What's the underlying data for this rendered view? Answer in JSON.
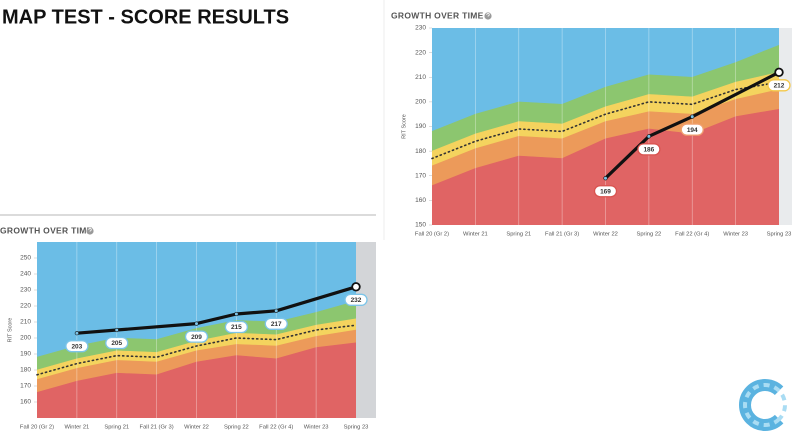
{
  "header": {
    "title": "MAP TEST - SCORE RESULTS"
  },
  "chart_data": [
    {
      "type": "area",
      "title": "GROWTH OVER TIME",
      "y_label": "RIT Score",
      "categories": [
        "Fall 20 (Gr 2)",
        "Winter 21",
        "Spring 21",
        "Fall 21 (Gr 3)",
        "Winter 22",
        "Spring 22",
        "Fall 22 (Gr 4)",
        "Winter 23",
        "Spring 23"
      ],
      "ylim": [
        150,
        230
      ],
      "yticks": [
        150,
        160,
        170,
        180,
        190,
        200,
        210,
        220,
        230
      ],
      "grid": true,
      "background_color": "#6bbde6",
      "strip_color": "#e9ebed",
      "bands": [
        {
          "color": "#e06464",
          "values": [
            166,
            173,
            178,
            177,
            185,
            189,
            187,
            194,
            197
          ]
        },
        {
          "color": "#ec9a5a",
          "values": [
            174,
            181,
            186,
            185,
            192,
            196,
            195,
            201,
            205
          ]
        },
        {
          "color": "#f4d35e",
          "values": [
            180,
            187,
            192,
            191,
            198,
            203,
            202,
            208,
            212
          ]
        },
        {
          "color": "#8cc66f",
          "values": [
            188,
            195,
            200,
            199,
            206,
            211,
            210,
            216,
            223
          ]
        }
      ],
      "median": {
        "color": "#333333",
        "values": [
          177,
          184,
          189,
          188,
          195,
          200,
          199,
          205,
          208
        ]
      },
      "student": {
        "color": "#111111",
        "x": [
          "Winter 22",
          "Spring 22",
          "Fall 22 (Gr 4)",
          "Spring 23"
        ],
        "values": [
          169,
          186,
          194,
          212
        ],
        "label_colors": [
          "#d9534f",
          "#d9534f",
          "#f0a070",
          "#f4c84a"
        ]
      }
    },
    {
      "type": "area",
      "title": "GROWTH OVER TIME",
      "y_label": "RIT Score",
      "categories": [
        "Fall 20 (Gr 2)",
        "Winter 21",
        "Spring 21",
        "Fall 21 (Gr 3)",
        "Winter 22",
        "Spring 22",
        "Fall 22 (Gr 4)",
        "Winter 23",
        "Spring 23"
      ],
      "ylim": [
        150,
        260
      ],
      "yticks": [
        160,
        170,
        180,
        190,
        200,
        210,
        220,
        230,
        240,
        250
      ],
      "grid": true,
      "background_color": "#6bbde6",
      "strip_color": "#d3d5d8",
      "bands": [
        {
          "color": "#e06464",
          "values": [
            166,
            173,
            178,
            177,
            185,
            189,
            187,
            194,
            197
          ]
        },
        {
          "color": "#ec9a5a",
          "values": [
            174,
            181,
            186,
            185,
            192,
            196,
            195,
            201,
            205
          ]
        },
        {
          "color": "#f4d35e",
          "values": [
            180,
            187,
            192,
            191,
            198,
            203,
            202,
            208,
            212
          ]
        },
        {
          "color": "#8cc66f",
          "values": [
            188,
            195,
            200,
            199,
            206,
            211,
            210,
            216,
            223
          ]
        }
      ],
      "median": {
        "color": "#333333",
        "values": [
          177,
          184,
          189,
          188,
          195,
          200,
          199,
          205,
          208
        ]
      },
      "student": {
        "color": "#111111",
        "x": [
          "Winter 21",
          "Spring 21",
          "Winter 22",
          "Spring 22",
          "Fall 22 (Gr 4)",
          "Spring 23"
        ],
        "values": [
          203,
          205,
          209,
          215,
          217,
          232
        ],
        "label_colors": [
          "#7cc4e8",
          "#7cc4e8",
          "#7cc4e8",
          "#7cc4e8",
          "#7cc4e8",
          "#7cc4e8"
        ]
      }
    }
  ]
}
